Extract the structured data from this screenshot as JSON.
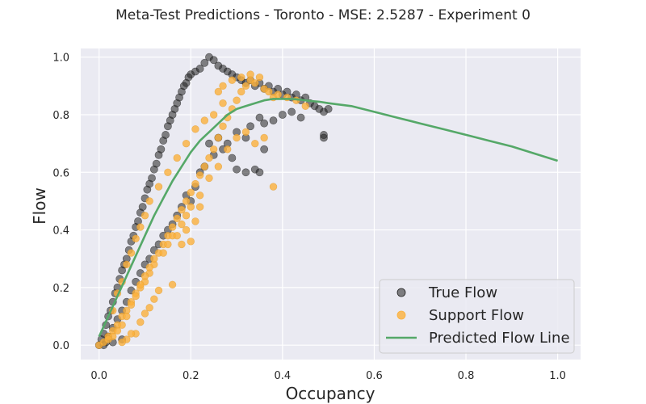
{
  "chart_data": {
    "type": "scatter",
    "title": "Meta-Test Predictions - Toronto - MSE: 2.5287 - Experiment 0",
    "xlabel": "Occupancy",
    "ylabel": "Flow",
    "xlim": [
      -0.04,
      1.05
    ],
    "ylim": [
      -0.05,
      1.03
    ],
    "xticks": [
      "0.0",
      "0.2",
      "0.4",
      "0.6",
      "0.8",
      "1.0"
    ],
    "yticks": [
      "0.0",
      "0.2",
      "0.4",
      "0.6",
      "0.8",
      "1.0"
    ],
    "grid": true,
    "legend_position": "lower-right",
    "background_color": "#eaeaf2",
    "series": [
      {
        "name": "True Flow",
        "kind": "scatter",
        "color": "#222222",
        "alpha": 0.55,
        "points": [
          [
            0.0,
            0.0
          ],
          [
            0.005,
            0.02
          ],
          [
            0.01,
            0.04
          ],
          [
            0.015,
            0.07
          ],
          [
            0.02,
            0.1
          ],
          [
            0.025,
            0.12
          ],
          [
            0.03,
            0.15
          ],
          [
            0.035,
            0.18
          ],
          [
            0.04,
            0.2
          ],
          [
            0.045,
            0.23
          ],
          [
            0.05,
            0.26
          ],
          [
            0.055,
            0.28
          ],
          [
            0.06,
            0.3
          ],
          [
            0.065,
            0.33
          ],
          [
            0.07,
            0.36
          ],
          [
            0.075,
            0.38
          ],
          [
            0.08,
            0.41
          ],
          [
            0.085,
            0.43
          ],
          [
            0.09,
            0.46
          ],
          [
            0.095,
            0.48
          ],
          [
            0.1,
            0.51
          ],
          [
            0.105,
            0.54
          ],
          [
            0.11,
            0.56
          ],
          [
            0.115,
            0.58
          ],
          [
            0.12,
            0.61
          ],
          [
            0.125,
            0.63
          ],
          [
            0.13,
            0.66
          ],
          [
            0.135,
            0.68
          ],
          [
            0.14,
            0.71
          ],
          [
            0.145,
            0.73
          ],
          [
            0.15,
            0.76
          ],
          [
            0.155,
            0.78
          ],
          [
            0.16,
            0.8
          ],
          [
            0.165,
            0.82
          ],
          [
            0.17,
            0.84
          ],
          [
            0.175,
            0.86
          ],
          [
            0.18,
            0.88
          ],
          [
            0.185,
            0.9
          ],
          [
            0.19,
            0.91
          ],
          [
            0.195,
            0.93
          ],
          [
            0.2,
            0.94
          ],
          [
            0.21,
            0.95
          ],
          [
            0.22,
            0.96
          ],
          [
            0.23,
            0.98
          ],
          [
            0.24,
            1.0
          ],
          [
            0.25,
            0.99
          ],
          [
            0.26,
            0.97
          ],
          [
            0.27,
            0.96
          ],
          [
            0.28,
            0.95
          ],
          [
            0.29,
            0.94
          ],
          [
            0.3,
            0.93
          ],
          [
            0.31,
            0.92
          ],
          [
            0.32,
            0.91
          ],
          [
            0.33,
            0.92
          ],
          [
            0.34,
            0.9
          ],
          [
            0.35,
            0.91
          ],
          [
            0.36,
            0.89
          ],
          [
            0.37,
            0.9
          ],
          [
            0.38,
            0.88
          ],
          [
            0.39,
            0.89
          ],
          [
            0.4,
            0.87
          ],
          [
            0.41,
            0.88
          ],
          [
            0.42,
            0.86
          ],
          [
            0.43,
            0.87
          ],
          [
            0.44,
            0.85
          ],
          [
            0.45,
            0.86
          ],
          [
            0.46,
            0.84
          ],
          [
            0.47,
            0.83
          ],
          [
            0.48,
            0.82
          ],
          [
            0.49,
            0.81
          ],
          [
            0.5,
            0.82
          ],
          [
            0.49,
            0.72
          ],
          [
            0.49,
            0.73
          ],
          [
            0.42,
            0.81
          ],
          [
            0.44,
            0.79
          ],
          [
            0.4,
            0.8
          ],
          [
            0.38,
            0.78
          ],
          [
            0.36,
            0.77
          ],
          [
            0.35,
            0.79
          ],
          [
            0.33,
            0.76
          ],
          [
            0.3,
            0.74
          ],
          [
            0.32,
            0.72
          ],
          [
            0.28,
            0.7
          ],
          [
            0.3,
            0.61
          ],
          [
            0.32,
            0.6
          ],
          [
            0.34,
            0.61
          ],
          [
            0.35,
            0.6
          ],
          [
            0.36,
            0.68
          ],
          [
            0.29,
            0.65
          ],
          [
            0.27,
            0.68
          ],
          [
            0.25,
            0.66
          ],
          [
            0.26,
            0.72
          ],
          [
            0.24,
            0.7
          ],
          [
            0.23,
            0.62
          ],
          [
            0.22,
            0.6
          ],
          [
            0.21,
            0.55
          ],
          [
            0.2,
            0.5
          ],
          [
            0.19,
            0.52
          ],
          [
            0.18,
            0.48
          ],
          [
            0.17,
            0.45
          ],
          [
            0.16,
            0.42
          ],
          [
            0.15,
            0.4
          ],
          [
            0.14,
            0.38
          ],
          [
            0.13,
            0.35
          ],
          [
            0.12,
            0.33
          ],
          [
            0.11,
            0.3
          ],
          [
            0.1,
            0.28
          ],
          [
            0.09,
            0.25
          ],
          [
            0.08,
            0.22
          ],
          [
            0.07,
            0.19
          ],
          [
            0.06,
            0.15
          ],
          [
            0.05,
            0.12
          ],
          [
            0.04,
            0.09
          ],
          [
            0.03,
            0.06
          ],
          [
            0.02,
            0.03
          ],
          [
            0.015,
            0.01
          ],
          [
            0.03,
            0.01
          ],
          [
            0.05,
            0.02
          ],
          [
            0.01,
            0.0
          ]
        ]
      },
      {
        "name": "Support Flow",
        "kind": "scatter",
        "color": "#fbb03b",
        "alpha": 0.8,
        "points": [
          [
            0.0,
            0.0
          ],
          [
            0.01,
            0.01
          ],
          [
            0.02,
            0.03
          ],
          [
            0.03,
            0.05
          ],
          [
            0.04,
            0.07
          ],
          [
            0.05,
            0.1
          ],
          [
            0.06,
            0.12
          ],
          [
            0.07,
            0.15
          ],
          [
            0.08,
            0.18
          ],
          [
            0.09,
            0.2
          ],
          [
            0.1,
            0.22
          ],
          [
            0.11,
            0.25
          ],
          [
            0.12,
            0.28
          ],
          [
            0.13,
            0.32
          ],
          [
            0.14,
            0.35
          ],
          [
            0.15,
            0.38
          ],
          [
            0.16,
            0.41
          ],
          [
            0.17,
            0.44
          ],
          [
            0.18,
            0.47
          ],
          [
            0.19,
            0.5
          ],
          [
            0.2,
            0.53
          ],
          [
            0.21,
            0.56
          ],
          [
            0.22,
            0.59
          ],
          [
            0.23,
            0.62
          ],
          [
            0.24,
            0.65
          ],
          [
            0.25,
            0.68
          ],
          [
            0.26,
            0.72
          ],
          [
            0.27,
            0.76
          ],
          [
            0.28,
            0.79
          ],
          [
            0.29,
            0.82
          ],
          [
            0.3,
            0.85
          ],
          [
            0.31,
            0.88
          ],
          [
            0.32,
            0.9
          ],
          [
            0.33,
            0.92
          ],
          [
            0.34,
            0.91
          ],
          [
            0.35,
            0.93
          ],
          [
            0.36,
            0.89
          ],
          [
            0.37,
            0.88
          ],
          [
            0.38,
            0.86
          ],
          [
            0.39,
            0.87
          ],
          [
            0.41,
            0.86
          ],
          [
            0.43,
            0.85
          ],
          [
            0.45,
            0.83
          ],
          [
            0.36,
            0.72
          ],
          [
            0.34,
            0.7
          ],
          [
            0.32,
            0.74
          ],
          [
            0.3,
            0.72
          ],
          [
            0.28,
            0.68
          ],
          [
            0.26,
            0.62
          ],
          [
            0.24,
            0.58
          ],
          [
            0.22,
            0.52
          ],
          [
            0.2,
            0.48
          ],
          [
            0.19,
            0.45
          ],
          [
            0.18,
            0.42
          ],
          [
            0.16,
            0.38
          ],
          [
            0.15,
            0.35
          ],
          [
            0.14,
            0.32
          ],
          [
            0.12,
            0.3
          ],
          [
            0.11,
            0.27
          ],
          [
            0.1,
            0.24
          ],
          [
            0.09,
            0.21
          ],
          [
            0.08,
            0.17
          ],
          [
            0.07,
            0.14
          ],
          [
            0.06,
            0.1
          ],
          [
            0.05,
            0.07
          ],
          [
            0.04,
            0.05
          ],
          [
            0.03,
            0.03
          ],
          [
            0.02,
            0.02
          ],
          [
            0.17,
            0.38
          ],
          [
            0.18,
            0.35
          ],
          [
            0.19,
            0.4
          ],
          [
            0.2,
            0.36
          ],
          [
            0.22,
            0.48
          ],
          [
            0.21,
            0.43
          ],
          [
            0.38,
            0.55
          ],
          [
            0.16,
            0.21
          ],
          [
            0.13,
            0.19
          ],
          [
            0.12,
            0.16
          ],
          [
            0.11,
            0.13
          ],
          [
            0.1,
            0.11
          ],
          [
            0.09,
            0.08
          ],
          [
            0.08,
            0.04
          ],
          [
            0.07,
            0.04
          ],
          [
            0.06,
            0.02
          ],
          [
            0.05,
            0.01
          ],
          [
            0.26,
            0.88
          ],
          [
            0.27,
            0.9
          ],
          [
            0.29,
            0.92
          ],
          [
            0.31,
            0.93
          ],
          [
            0.33,
            0.94
          ],
          [
            0.27,
            0.84
          ],
          [
            0.25,
            0.8
          ],
          [
            0.23,
            0.78
          ],
          [
            0.21,
            0.75
          ],
          [
            0.19,
            0.7
          ],
          [
            0.17,
            0.65
          ],
          [
            0.15,
            0.6
          ],
          [
            0.13,
            0.55
          ],
          [
            0.11,
            0.5
          ],
          [
            0.1,
            0.45
          ],
          [
            0.09,
            0.41
          ],
          [
            0.08,
            0.37
          ],
          [
            0.07,
            0.32
          ],
          [
            0.06,
            0.28
          ],
          [
            0.05,
            0.22
          ],
          [
            0.04,
            0.18
          ],
          [
            0.03,
            0.12
          ]
        ]
      },
      {
        "name": "Predicted Flow Line",
        "kind": "line",
        "color": "#55a868",
        "x": [
          0.0,
          0.02,
          0.04,
          0.06,
          0.08,
          0.1,
          0.12,
          0.14,
          0.16,
          0.18,
          0.2,
          0.22,
          0.24,
          0.26,
          0.28,
          0.3,
          0.32,
          0.34,
          0.36,
          0.38,
          0.4,
          0.42,
          0.44,
          0.46,
          0.48,
          0.5,
          0.55,
          0.6,
          0.65,
          0.7,
          0.75,
          0.8,
          0.85,
          0.9,
          0.95,
          1.0
        ],
        "y": [
          0.03,
          0.1,
          0.17,
          0.24,
          0.31,
          0.38,
          0.45,
          0.51,
          0.57,
          0.62,
          0.67,
          0.71,
          0.74,
          0.77,
          0.8,
          0.82,
          0.83,
          0.84,
          0.85,
          0.855,
          0.855,
          0.855,
          0.852,
          0.848,
          0.845,
          0.84,
          0.83,
          0.81,
          0.79,
          0.77,
          0.75,
          0.73,
          0.71,
          0.69,
          0.665,
          0.64
        ]
      }
    ]
  }
}
